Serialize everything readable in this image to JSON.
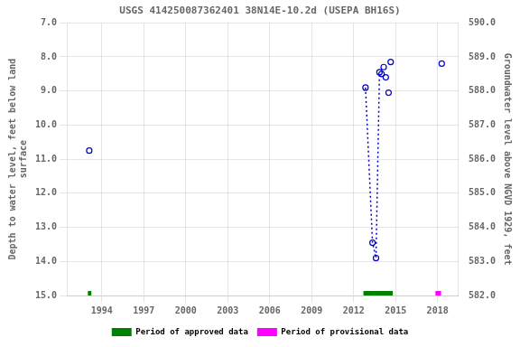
{
  "chart_data": {
    "type": "scatter",
    "title": "USGS 414250087362401 38N14E-10.2d (USEPA BH16S)",
    "xlim": [
      1991.5,
      2019.5
    ],
    "xticks": [
      1994,
      1997,
      2000,
      2003,
      2006,
      2009,
      2012,
      2015,
      2018
    ],
    "ylabel": "Depth to water level, feet below land\nsurface",
    "ylim": [
      15.0,
      7.0
    ],
    "yticks": [
      {
        "value": 7.0,
        "label": "7.0"
      },
      {
        "value": 8.0,
        "label": "8.0"
      },
      {
        "value": 9.0,
        "label": "9.0"
      },
      {
        "value": 10.0,
        "label": "10.0"
      },
      {
        "value": 11.0,
        "label": "11.0"
      },
      {
        "value": 12.0,
        "label": "12.0"
      },
      {
        "value": 13.0,
        "label": "13.0"
      },
      {
        "value": 14.0,
        "label": "14.0"
      },
      {
        "value": 15.0,
        "label": "15.0"
      }
    ],
    "y2label": "Groundwater level above NGVD 1929, feet",
    "y2lim": [
      582.0,
      590.0
    ],
    "y2ticks": [
      {
        "value": 582.0,
        "label": "582.0"
      },
      {
        "value": 583.0,
        "label": "583.0"
      },
      {
        "value": 584.0,
        "label": "584.0"
      },
      {
        "value": 585.0,
        "label": "585.0"
      },
      {
        "value": 586.0,
        "label": "586.0"
      },
      {
        "value": 587.0,
        "label": "587.0"
      },
      {
        "value": 588.0,
        "label": "588.0"
      },
      {
        "value": 589.0,
        "label": "589.0"
      },
      {
        "value": 590.0,
        "label": "590.0"
      }
    ],
    "grid": true,
    "legend": "bottom",
    "series": [
      {
        "type": "scatter",
        "color": "#0000CC",
        "marker": "open_circle",
        "x": [
          1993.1,
          2012.85,
          2013.35,
          2013.6,
          2013.85,
          2014.0,
          2014.15,
          2014.3,
          2014.5,
          2014.65,
          2018.3
        ],
        "values": [
          10.75,
          8.9,
          13.45,
          13.9,
          8.45,
          8.5,
          8.3,
          8.6,
          9.05,
          8.15,
          8.2
        ]
      },
      {
        "type": "line",
        "color": "#0000CC",
        "line_style": "dotted",
        "x": [
          2012.85,
          2013.35,
          2013.6,
          2013.85
        ],
        "values": [
          8.9,
          13.45,
          13.9,
          8.45
        ]
      },
      {
        "type": "period",
        "name": "Period of approved data",
        "color": "#008000",
        "x": [
          1993.0,
          2012.7
        ],
        "width": [
          0.25,
          2.1
        ]
      },
      {
        "type": "period",
        "name": "Period of provisional data",
        "color": "#FF00FF",
        "x": [
          2017.85
        ],
        "width": [
          0.4
        ]
      }
    ]
  }
}
